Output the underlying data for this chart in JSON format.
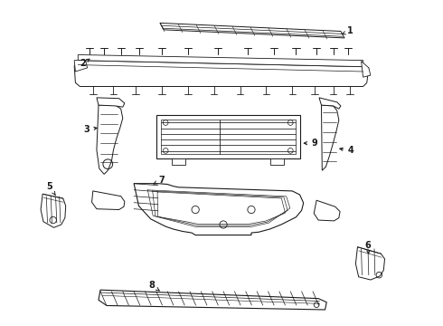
{
  "background_color": "#ffffff",
  "line_color": "#1a1a1a",
  "fig_w": 4.9,
  "fig_h": 3.6,
  "dpi": 100
}
